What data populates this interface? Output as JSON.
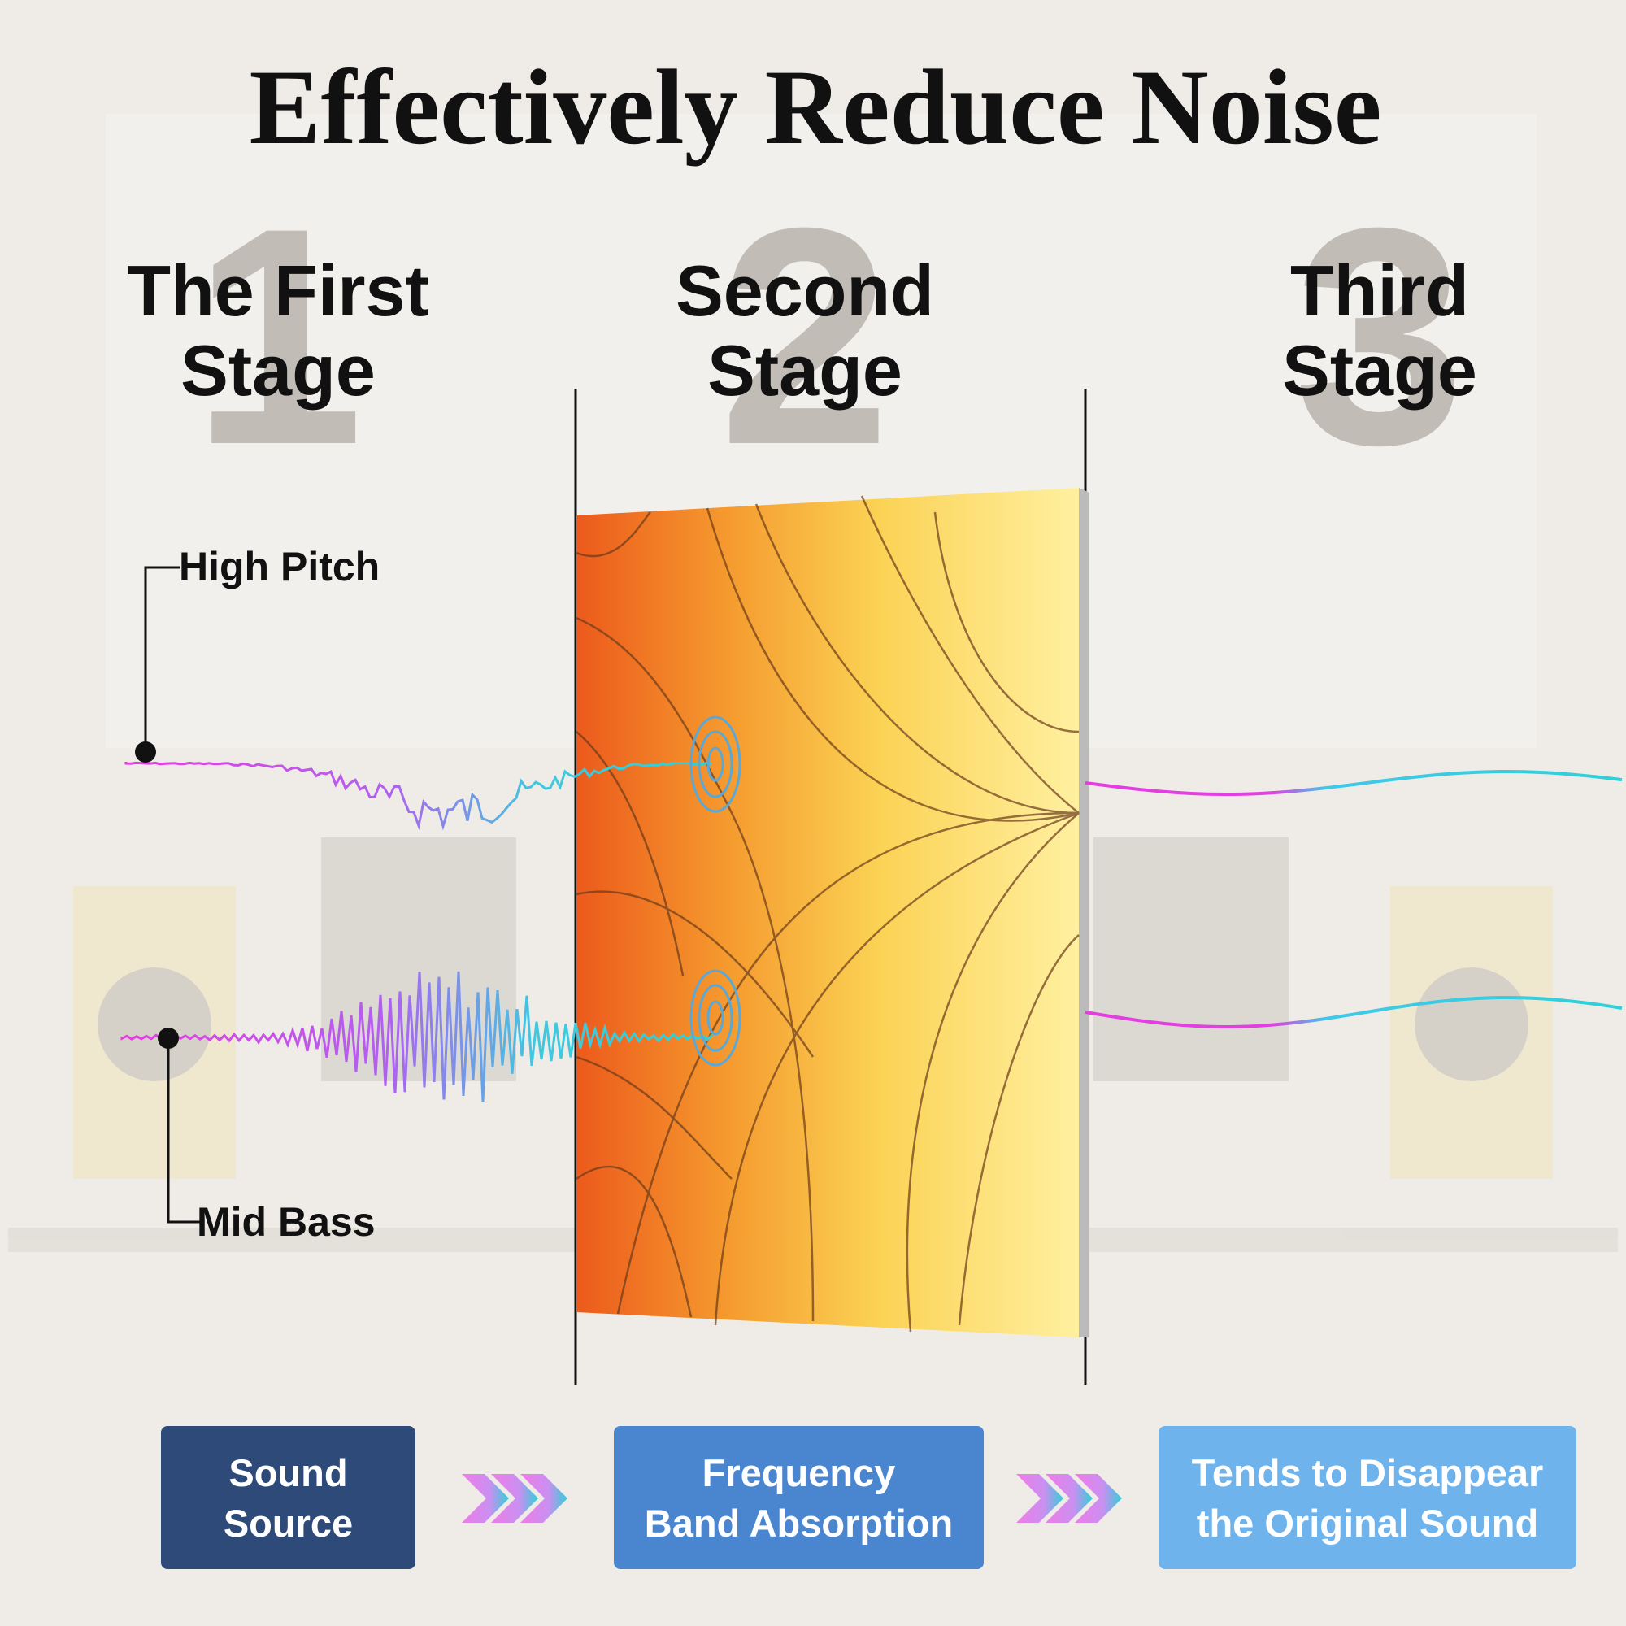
{
  "title": "Effectively Reduce Noise",
  "stages": [
    {
      "number": "1",
      "title_lines": [
        "The First",
        "Stage"
      ]
    },
    {
      "number": "2",
      "title_lines": [
        "Second",
        "Stage"
      ]
    },
    {
      "number": "3",
      "title_lines": [
        "Third",
        "Stage"
      ]
    }
  ],
  "labels": {
    "high": "High Pitch",
    "mid": "Mid Bass"
  },
  "steps": [
    {
      "lines": [
        "Sound",
        "Source"
      ]
    },
    {
      "lines": [
        "Frequency",
        "Band Absorption"
      ]
    },
    {
      "lines": [
        "Tends to Disappear",
        "the Original Sound"
      ]
    }
  ]
}
